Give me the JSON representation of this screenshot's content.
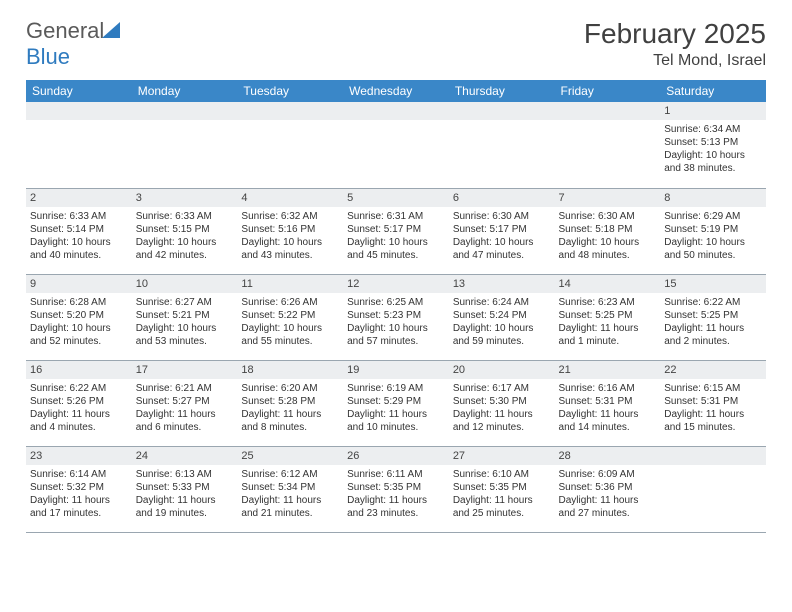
{
  "brand": {
    "name_a": "General",
    "name_b": "Blue"
  },
  "title": "February 2025",
  "subtitle": "Tel Mond, Israel",
  "header_bg": "#3a87c8",
  "header_text_color": "#ffffff",
  "daynum_bg": "#eceef0",
  "border_color": "#9aa6b0",
  "days": [
    "Sunday",
    "Monday",
    "Tuesday",
    "Wednesday",
    "Thursday",
    "Friday",
    "Saturday"
  ],
  "weeks": [
    [
      {
        "n": "",
        "sunrise": "",
        "sunset": "",
        "daylight": ""
      },
      {
        "n": "",
        "sunrise": "",
        "sunset": "",
        "daylight": ""
      },
      {
        "n": "",
        "sunrise": "",
        "sunset": "",
        "daylight": ""
      },
      {
        "n": "",
        "sunrise": "",
        "sunset": "",
        "daylight": ""
      },
      {
        "n": "",
        "sunrise": "",
        "sunset": "",
        "daylight": ""
      },
      {
        "n": "",
        "sunrise": "",
        "sunset": "",
        "daylight": ""
      },
      {
        "n": "1",
        "sunrise": "Sunrise: 6:34 AM",
        "sunset": "Sunset: 5:13 PM",
        "daylight": "Daylight: 10 hours and 38 minutes."
      }
    ],
    [
      {
        "n": "2",
        "sunrise": "Sunrise: 6:33 AM",
        "sunset": "Sunset: 5:14 PM",
        "daylight": "Daylight: 10 hours and 40 minutes."
      },
      {
        "n": "3",
        "sunrise": "Sunrise: 6:33 AM",
        "sunset": "Sunset: 5:15 PM",
        "daylight": "Daylight: 10 hours and 42 minutes."
      },
      {
        "n": "4",
        "sunrise": "Sunrise: 6:32 AM",
        "sunset": "Sunset: 5:16 PM",
        "daylight": "Daylight: 10 hours and 43 minutes."
      },
      {
        "n": "5",
        "sunrise": "Sunrise: 6:31 AM",
        "sunset": "Sunset: 5:17 PM",
        "daylight": "Daylight: 10 hours and 45 minutes."
      },
      {
        "n": "6",
        "sunrise": "Sunrise: 6:30 AM",
        "sunset": "Sunset: 5:17 PM",
        "daylight": "Daylight: 10 hours and 47 minutes."
      },
      {
        "n": "7",
        "sunrise": "Sunrise: 6:30 AM",
        "sunset": "Sunset: 5:18 PM",
        "daylight": "Daylight: 10 hours and 48 minutes."
      },
      {
        "n": "8",
        "sunrise": "Sunrise: 6:29 AM",
        "sunset": "Sunset: 5:19 PM",
        "daylight": "Daylight: 10 hours and 50 minutes."
      }
    ],
    [
      {
        "n": "9",
        "sunrise": "Sunrise: 6:28 AM",
        "sunset": "Sunset: 5:20 PM",
        "daylight": "Daylight: 10 hours and 52 minutes."
      },
      {
        "n": "10",
        "sunrise": "Sunrise: 6:27 AM",
        "sunset": "Sunset: 5:21 PM",
        "daylight": "Daylight: 10 hours and 53 minutes."
      },
      {
        "n": "11",
        "sunrise": "Sunrise: 6:26 AM",
        "sunset": "Sunset: 5:22 PM",
        "daylight": "Daylight: 10 hours and 55 minutes."
      },
      {
        "n": "12",
        "sunrise": "Sunrise: 6:25 AM",
        "sunset": "Sunset: 5:23 PM",
        "daylight": "Daylight: 10 hours and 57 minutes."
      },
      {
        "n": "13",
        "sunrise": "Sunrise: 6:24 AM",
        "sunset": "Sunset: 5:24 PM",
        "daylight": "Daylight: 10 hours and 59 minutes."
      },
      {
        "n": "14",
        "sunrise": "Sunrise: 6:23 AM",
        "sunset": "Sunset: 5:25 PM",
        "daylight": "Daylight: 11 hours and 1 minute."
      },
      {
        "n": "15",
        "sunrise": "Sunrise: 6:22 AM",
        "sunset": "Sunset: 5:25 PM",
        "daylight": "Daylight: 11 hours and 2 minutes."
      }
    ],
    [
      {
        "n": "16",
        "sunrise": "Sunrise: 6:22 AM",
        "sunset": "Sunset: 5:26 PM",
        "daylight": "Daylight: 11 hours and 4 minutes."
      },
      {
        "n": "17",
        "sunrise": "Sunrise: 6:21 AM",
        "sunset": "Sunset: 5:27 PM",
        "daylight": "Daylight: 11 hours and 6 minutes."
      },
      {
        "n": "18",
        "sunrise": "Sunrise: 6:20 AM",
        "sunset": "Sunset: 5:28 PM",
        "daylight": "Daylight: 11 hours and 8 minutes."
      },
      {
        "n": "19",
        "sunrise": "Sunrise: 6:19 AM",
        "sunset": "Sunset: 5:29 PM",
        "daylight": "Daylight: 11 hours and 10 minutes."
      },
      {
        "n": "20",
        "sunrise": "Sunrise: 6:17 AM",
        "sunset": "Sunset: 5:30 PM",
        "daylight": "Daylight: 11 hours and 12 minutes."
      },
      {
        "n": "21",
        "sunrise": "Sunrise: 6:16 AM",
        "sunset": "Sunset: 5:31 PM",
        "daylight": "Daylight: 11 hours and 14 minutes."
      },
      {
        "n": "22",
        "sunrise": "Sunrise: 6:15 AM",
        "sunset": "Sunset: 5:31 PM",
        "daylight": "Daylight: 11 hours and 15 minutes."
      }
    ],
    [
      {
        "n": "23",
        "sunrise": "Sunrise: 6:14 AM",
        "sunset": "Sunset: 5:32 PM",
        "daylight": "Daylight: 11 hours and 17 minutes."
      },
      {
        "n": "24",
        "sunrise": "Sunrise: 6:13 AM",
        "sunset": "Sunset: 5:33 PM",
        "daylight": "Daylight: 11 hours and 19 minutes."
      },
      {
        "n": "25",
        "sunrise": "Sunrise: 6:12 AM",
        "sunset": "Sunset: 5:34 PM",
        "daylight": "Daylight: 11 hours and 21 minutes."
      },
      {
        "n": "26",
        "sunrise": "Sunrise: 6:11 AM",
        "sunset": "Sunset: 5:35 PM",
        "daylight": "Daylight: 11 hours and 23 minutes."
      },
      {
        "n": "27",
        "sunrise": "Sunrise: 6:10 AM",
        "sunset": "Sunset: 5:35 PM",
        "daylight": "Daylight: 11 hours and 25 minutes."
      },
      {
        "n": "28",
        "sunrise": "Sunrise: 6:09 AM",
        "sunset": "Sunset: 5:36 PM",
        "daylight": "Daylight: 11 hours and 27 minutes."
      },
      {
        "n": "",
        "sunrise": "",
        "sunset": "",
        "daylight": ""
      }
    ]
  ]
}
